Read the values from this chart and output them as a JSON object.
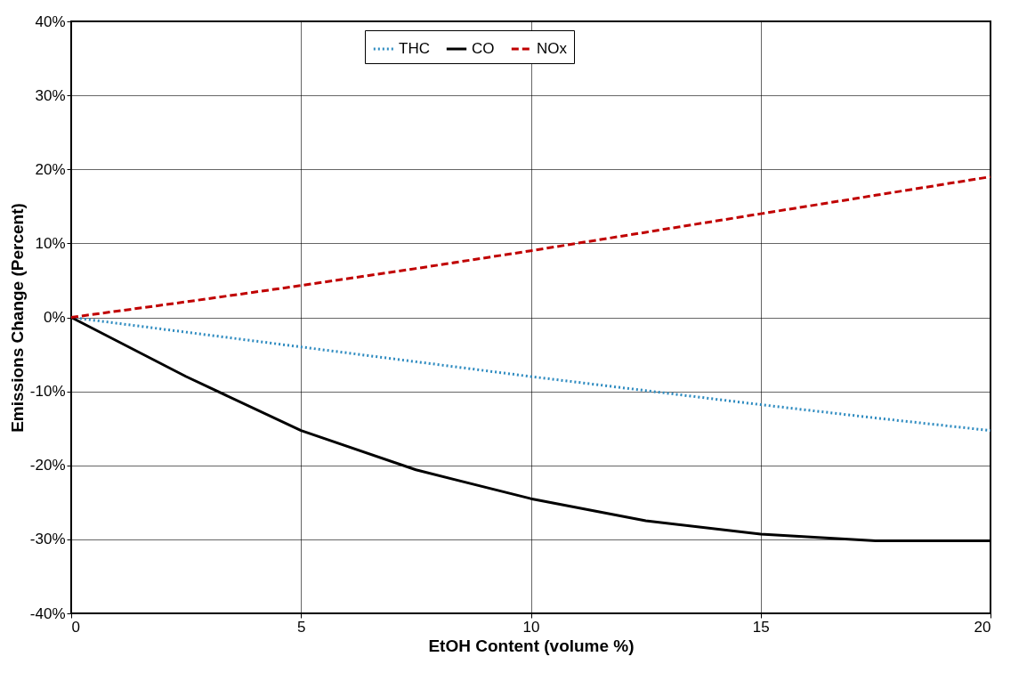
{
  "chart_data": {
    "type": "line",
    "xlabel": "EtOH Content (volume %)",
    "ylabel": "Emissions Change (Percent)",
    "x": [
      0,
      2.5,
      5,
      7.5,
      10,
      12.5,
      15,
      17.5,
      20
    ],
    "series": [
      {
        "name": "THC",
        "color": "#2e8bc0",
        "line_style": "dotted",
        "values": [
          0,
          -2,
          -4,
          -6,
          -8,
          -9.9,
          -11.8,
          -13.6,
          -15.3
        ]
      },
      {
        "name": "CO",
        "color": "#000000",
        "line_style": "solid",
        "values": [
          0,
          -8,
          -15.3,
          -20.6,
          -24.5,
          -27.5,
          -29.3,
          -30.2,
          -30.2
        ]
      },
      {
        "name": "NOx",
        "color": "#c00000",
        "line_style": "dashed",
        "values": [
          0,
          2.1,
          4.3,
          6.6,
          9,
          11.5,
          14,
          16.5,
          19
        ]
      }
    ],
    "xlim": [
      0,
      20
    ],
    "xticks": [
      0,
      5,
      10,
      15,
      20
    ],
    "ylim": [
      -40,
      40
    ],
    "yticks": [
      {
        "value": -40,
        "label": "-40%"
      },
      {
        "value": -30,
        "label": "-30%"
      },
      {
        "value": -20,
        "label": "-20%"
      },
      {
        "value": -10,
        "label": "-10%"
      },
      {
        "value": 0,
        "label": "0%"
      },
      {
        "value": 10,
        "label": "10%"
      },
      {
        "value": 20,
        "label": "20%"
      },
      {
        "value": 30,
        "label": "30%"
      },
      {
        "value": 40,
        "label": "40%"
      }
    ],
    "grid": true,
    "legend": "top",
    "marker": "none"
  }
}
